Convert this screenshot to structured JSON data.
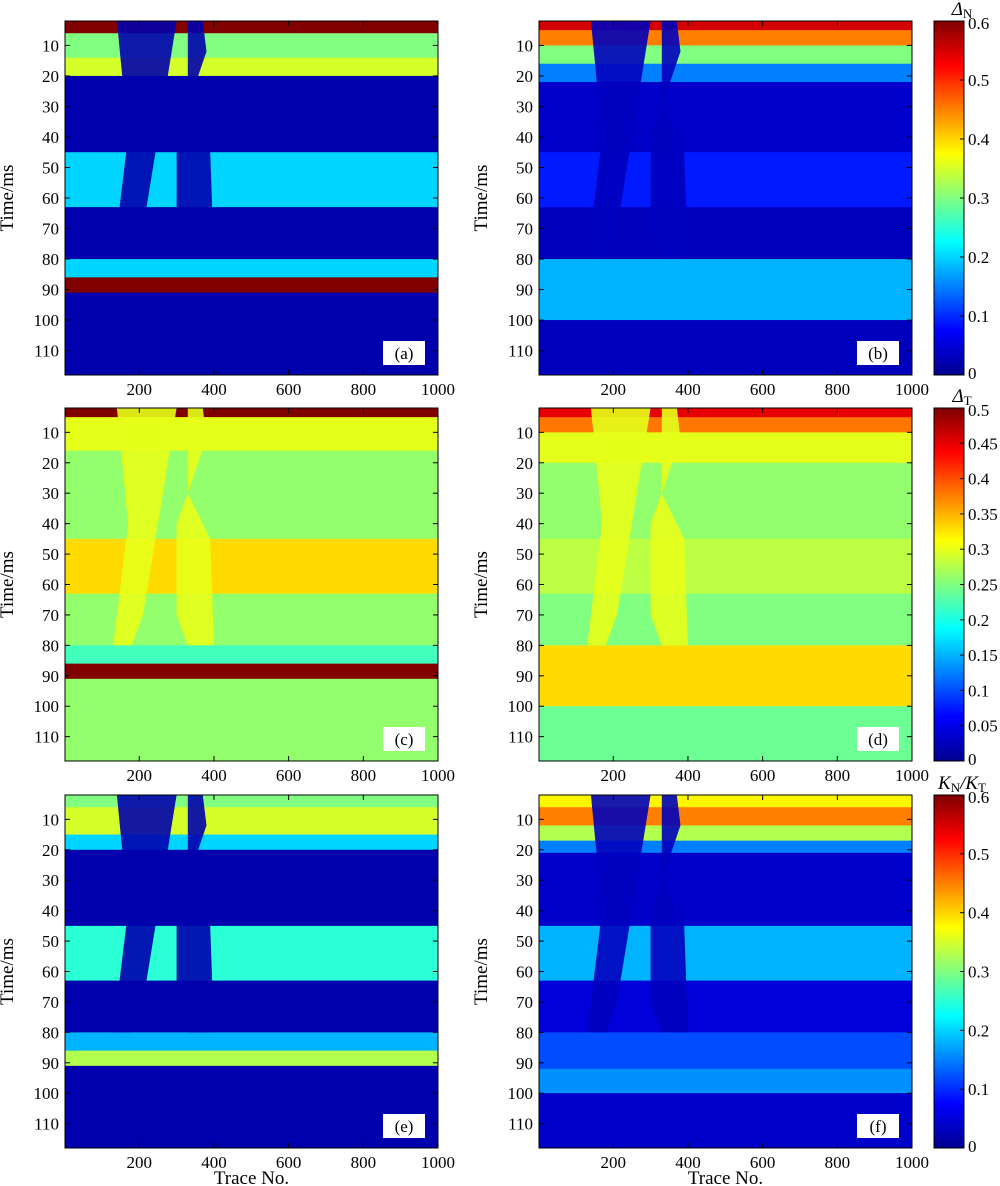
{
  "figure": {
    "colormap": [
      "#00008f",
      "#0000ff",
      "#0080ff",
      "#00ffff",
      "#80ff80",
      "#ffff00",
      "#ff8000",
      "#ff0000",
      "#800000"
    ],
    "panel_bg": "#00008f"
  },
  "chart_data": [
    {
      "type": "heatmap",
      "panel": "a",
      "label": "(a)",
      "xlabel": "",
      "ylabel": "Time/ms",
      "xlim": [
        1,
        1000
      ],
      "ylim": [
        2,
        118
      ],
      "y_reversed": true,
      "xticks": [
        200,
        400,
        600,
        800,
        1000
      ],
      "yticks": [
        10,
        20,
        30,
        40,
        50,
        60,
        70,
        80,
        90,
        100,
        110
      ],
      "clim": [
        0,
        0.6
      ],
      "layers": [
        {
          "y0": 2,
          "y1": 6,
          "value": 0.6
        },
        {
          "y0": 6,
          "y1": 14,
          "value": 0.3
        },
        {
          "y0": 14,
          "y1": 20,
          "value": 0.35
        },
        {
          "y0": 20,
          "y1": 45,
          "value": 0.02
        },
        {
          "y0": 45,
          "y1": 63,
          "value": 0.2
        },
        {
          "y0": 63,
          "y1": 80,
          "value": 0.02
        },
        {
          "y0": 80,
          "y1": 86,
          "value": 0.2
        },
        {
          "y0": 86,
          "y1": 91,
          "value": 0.6
        },
        {
          "y0": 91,
          "y1": 118,
          "value": 0.02
        }
      ],
      "wedge_value": 0.02
    },
    {
      "type": "heatmap",
      "panel": "b",
      "label": "(b)",
      "xlabel": "",
      "ylabel": "Time/ms",
      "xlim": [
        1,
        1000
      ],
      "ylim": [
        2,
        118
      ],
      "y_reversed": true,
      "xticks": [
        200,
        400,
        600,
        800,
        1000
      ],
      "yticks": [
        10,
        20,
        30,
        40,
        50,
        60,
        70,
        80,
        90,
        100,
        110
      ],
      "clim": [
        0,
        0.6
      ],
      "layers": [
        {
          "y0": 2,
          "y1": 5,
          "value": 0.55
        },
        {
          "y0": 5,
          "y1": 10,
          "value": 0.45
        },
        {
          "y0": 10,
          "y1": 16,
          "value": 0.3
        },
        {
          "y0": 16,
          "y1": 22,
          "value": 0.15
        },
        {
          "y0": 22,
          "y1": 45,
          "value": 0.04
        },
        {
          "y0": 45,
          "y1": 63,
          "value": 0.09
        },
        {
          "y0": 63,
          "y1": 80,
          "value": 0.03
        },
        {
          "y0": 80,
          "y1": 100,
          "value": 0.18
        },
        {
          "y0": 100,
          "y1": 118,
          "value": 0.03
        }
      ],
      "wedge_value": 0.03,
      "colorbar": {
        "title": "Δ",
        "subscript": "N",
        "ticks": [
          0,
          0.1,
          0.2,
          0.3,
          0.4,
          0.5,
          0.6
        ]
      }
    },
    {
      "type": "heatmap",
      "panel": "c",
      "label": "(c)",
      "xlabel": "",
      "ylabel": "Time/ms",
      "xlim": [
        1,
        1000
      ],
      "ylim": [
        2,
        118
      ],
      "y_reversed": true,
      "xticks": [
        200,
        400,
        600,
        800,
        1000
      ],
      "yticks": [
        10,
        20,
        30,
        40,
        50,
        60,
        70,
        80,
        90,
        100,
        110
      ],
      "clim": [
        0,
        0.5
      ],
      "layers": [
        {
          "y0": 2,
          "y1": 5,
          "value": 0.5
        },
        {
          "y0": 5,
          "y1": 16,
          "value": 0.3
        },
        {
          "y0": 16,
          "y1": 45,
          "value": 0.26
        },
        {
          "y0": 45,
          "y1": 63,
          "value": 0.33
        },
        {
          "y0": 63,
          "y1": 80,
          "value": 0.26
        },
        {
          "y0": 80,
          "y1": 86,
          "value": 0.22
        },
        {
          "y0": 86,
          "y1": 91,
          "value": 0.5
        },
        {
          "y0": 91,
          "y1": 118,
          "value": 0.26
        }
      ],
      "wedge_value": 0.3
    },
    {
      "type": "heatmap",
      "panel": "d",
      "label": "(d)",
      "xlabel": "",
      "ylabel": "Time/ms",
      "xlim": [
        1,
        1000
      ],
      "ylim": [
        2,
        118
      ],
      "y_reversed": true,
      "xticks": [
        200,
        400,
        600,
        800,
        1000
      ],
      "yticks": [
        10,
        20,
        30,
        40,
        50,
        60,
        70,
        80,
        90,
        100,
        110
      ],
      "clim": [
        0,
        0.5
      ],
      "layers": [
        {
          "y0": 2,
          "y1": 5,
          "value": 0.45
        },
        {
          "y0": 5,
          "y1": 10,
          "value": 0.38
        },
        {
          "y0": 10,
          "y1": 20,
          "value": 0.3
        },
        {
          "y0": 20,
          "y1": 45,
          "value": 0.26
        },
        {
          "y0": 45,
          "y1": 63,
          "value": 0.28
        },
        {
          "y0": 63,
          "y1": 80,
          "value": 0.25
        },
        {
          "y0": 80,
          "y1": 100,
          "value": 0.33
        },
        {
          "y0": 100,
          "y1": 118,
          "value": 0.24
        }
      ],
      "wedge_value": 0.3,
      "colorbar": {
        "title": "Δ",
        "subscript": "T",
        "ticks": [
          0,
          0.05,
          0.1,
          0.15,
          0.2,
          0.25,
          0.3,
          0.35,
          0.4,
          0.45,
          0.5
        ]
      }
    },
    {
      "type": "heatmap",
      "panel": "e",
      "label": "(e)",
      "xlabel": "Trace No.",
      "ylabel": "Time/ms",
      "xlim": [
        1,
        1000
      ],
      "ylim": [
        2,
        118
      ],
      "y_reversed": true,
      "xticks": [
        200,
        400,
        600,
        800,
        1000
      ],
      "yticks": [
        10,
        20,
        30,
        40,
        50,
        60,
        70,
        80,
        90,
        100,
        110
      ],
      "clim": [
        0,
        0.6
      ],
      "layers": [
        {
          "y0": 2,
          "y1": 6,
          "value": 0.3
        },
        {
          "y0": 6,
          "y1": 15,
          "value": 0.35
        },
        {
          "y0": 15,
          "y1": 20,
          "value": 0.2
        },
        {
          "y0": 20,
          "y1": 45,
          "value": 0.02
        },
        {
          "y0": 45,
          "y1": 63,
          "value": 0.25
        },
        {
          "y0": 63,
          "y1": 80,
          "value": 0.02
        },
        {
          "y0": 80,
          "y1": 86,
          "value": 0.18
        },
        {
          "y0": 86,
          "y1": 91,
          "value": 0.33
        },
        {
          "y0": 91,
          "y1": 118,
          "value": 0.02
        }
      ],
      "wedge_value": 0.02
    },
    {
      "type": "heatmap",
      "panel": "f",
      "label": "(f)",
      "xlabel": "Trace No.",
      "ylabel": "Time/ms",
      "xlim": [
        1,
        1000
      ],
      "ylim": [
        2,
        118
      ],
      "y_reversed": true,
      "xticks": [
        200,
        400,
        600,
        800,
        1000
      ],
      "yticks": [
        10,
        20,
        30,
        40,
        50,
        60,
        70,
        80,
        90,
        100,
        110
      ],
      "clim": [
        0,
        0.6
      ],
      "layers": [
        {
          "y0": 2,
          "y1": 6,
          "value": 0.38
        },
        {
          "y0": 6,
          "y1": 12,
          "value": 0.45
        },
        {
          "y0": 12,
          "y1": 17,
          "value": 0.33
        },
        {
          "y0": 17,
          "y1": 21,
          "value": 0.15
        },
        {
          "y0": 21,
          "y1": 45,
          "value": 0.04
        },
        {
          "y0": 45,
          "y1": 63,
          "value": 0.18
        },
        {
          "y0": 63,
          "y1": 80,
          "value": 0.05
        },
        {
          "y0": 80,
          "y1": 92,
          "value": 0.12
        },
        {
          "y0": 92,
          "y1": 100,
          "value": 0.16
        },
        {
          "y0": 100,
          "y1": 118,
          "value": 0.04
        }
      ],
      "wedge_value": 0.03,
      "colorbar": {
        "title": "K",
        "subscript": "N",
        "title2": "/K",
        "subscript2": "T",
        "ticks": [
          0,
          0.1,
          0.2,
          0.3,
          0.4,
          0.5,
          0.6
        ]
      }
    }
  ]
}
